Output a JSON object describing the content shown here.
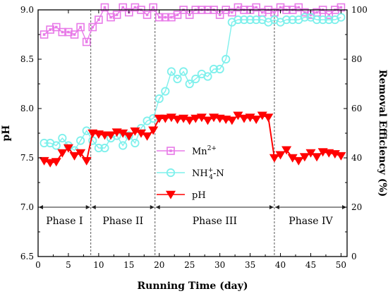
{
  "chart_data": {
    "type": "scatter",
    "xlabel": "Running Time (day)",
    "ylabel": "pH",
    "y2label": "Removal  Efficiency (%)",
    "xlim": [
      0,
      51
    ],
    "ylim": [
      6.5,
      9.0
    ],
    "y2lim": [
      0,
      100
    ],
    "x_ticks": [
      "0",
      "5",
      "10",
      "15",
      "20",
      "25",
      "30",
      "35",
      "40",
      "45",
      "50"
    ],
    "y_ticks": [
      "6.5",
      "7.0",
      "7.5",
      "8.0",
      "8.5",
      "9.0"
    ],
    "y2_ticks": [
      "0",
      "20",
      "40",
      "60",
      "80",
      "100"
    ],
    "phase_boundaries": [
      8.7,
      19.3,
      39.0
    ],
    "phases": [
      {
        "label": "Phase I",
        "center": 4.35
      },
      {
        "label": "Phase II",
        "center": 14.0
      },
      {
        "label": "Phase III",
        "center": 29.15
      },
      {
        "label": "Phase IV",
        "center": 45.0
      }
    ],
    "phase_arrow_y": 7.0,
    "grid": false,
    "legend_position": "middle-left",
    "series": [
      {
        "name": "Mn",
        "superscript": "2+",
        "axis": "right",
        "marker": "square",
        "color": "#E87AE8",
        "x": [
          1,
          2,
          3,
          4,
          5,
          6,
          7,
          8,
          9,
          10,
          11,
          12,
          13,
          14,
          15,
          16,
          17,
          18,
          19,
          20,
          21,
          22,
          23,
          24,
          25,
          26,
          27,
          28,
          29,
          30,
          31,
          32,
          33,
          34,
          35,
          36,
          37,
          38,
          39,
          40,
          41,
          42,
          43,
          44,
          45,
          46,
          47,
          48,
          49,
          50
        ],
        "y": [
          90,
          92,
          93,
          91,
          91,
          90,
          93,
          87,
          93,
          96,
          101,
          97,
          98,
          101,
          99,
          101,
          100,
          98,
          101,
          97,
          97,
          97,
          98,
          100,
          98,
          100,
          100,
          100,
          100,
          98,
          100,
          99,
          101,
          100,
          100,
          101,
          99,
          100,
          99,
          101,
          100,
          100,
          101,
          99,
          98,
          99,
          100,
          98,
          100,
          101
        ]
      },
      {
        "name": "NH4+-N",
        "axis": "right",
        "marker": "circle",
        "color": "#7FF0EC",
        "x": [
          1,
          2,
          3,
          4,
          5,
          6,
          7,
          8,
          9,
          10,
          11,
          12,
          13,
          14,
          15,
          16,
          17,
          18,
          19,
          20,
          21,
          22,
          23,
          24,
          25,
          26,
          27,
          28,
          29,
          30,
          31,
          32,
          33,
          34,
          35,
          36,
          37,
          38,
          39,
          40,
          41,
          42,
          43,
          44,
          45,
          46,
          47,
          48,
          49,
          50
        ],
        "y": [
          46,
          46,
          45,
          48,
          45,
          43,
          47,
          51,
          47,
          44,
          44,
          48,
          49,
          45,
          49,
          46,
          52,
          55,
          56,
          64,
          67,
          75,
          72,
          75,
          70,
          72,
          74,
          73,
          76,
          76,
          80,
          95,
          96,
          96,
          96,
          96,
          96,
          95,
          96,
          95,
          96,
          96,
          96,
          97,
          97,
          96,
          96,
          96,
          96,
          97
        ]
      },
      {
        "name": "pH",
        "axis": "left",
        "marker": "triangle-down",
        "color": "#FF0000",
        "x": [
          1,
          2,
          3,
          4,
          5,
          6,
          7,
          8,
          9,
          10,
          11,
          12,
          13,
          14,
          15,
          16,
          17,
          18,
          19,
          20,
          21,
          22,
          23,
          24,
          25,
          26,
          27,
          28,
          29,
          30,
          31,
          32,
          33,
          34,
          35,
          36,
          37,
          38,
          39,
          40,
          41,
          42,
          43,
          44,
          45,
          46,
          47,
          48,
          49,
          50
        ],
        "y": [
          7.47,
          7.45,
          7.46,
          7.55,
          7.6,
          7.52,
          7.55,
          7.47,
          7.75,
          7.74,
          7.73,
          7.73,
          7.76,
          7.75,
          7.72,
          7.77,
          7.75,
          7.72,
          7.78,
          7.9,
          7.9,
          7.91,
          7.89,
          7.9,
          7.88,
          7.9,
          7.91,
          7.88,
          7.91,
          7.9,
          7.89,
          7.88,
          7.93,
          7.9,
          7.91,
          7.89,
          7.93,
          7.91,
          7.5,
          7.53,
          7.58,
          7.5,
          7.47,
          7.51,
          7.55,
          7.51,
          7.56,
          7.55,
          7.54,
          7.52
        ]
      }
    ]
  }
}
